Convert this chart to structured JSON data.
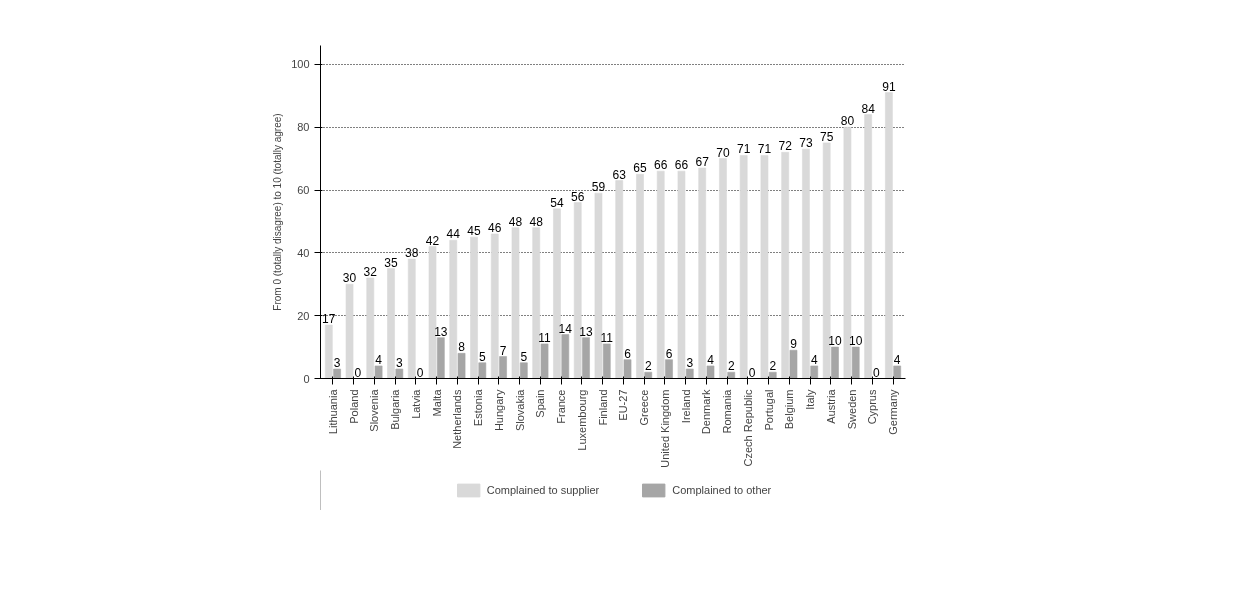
{
  "chart_data": {
    "type": "bar",
    "ylabel": "From 0 (totally disagree) to 10 (totally agree)",
    "categories": [
      "Lithuania",
      "Poland",
      "Slovenia",
      "Bulgaria",
      "Latvia",
      "Malta",
      "Netherlands",
      "Estonia",
      "Hungary",
      "Slovakia",
      "Spain",
      "France",
      "Luxembourg",
      "Finland",
      "EU-27",
      "Greece",
      "United Kingdom",
      "Ireland",
      "Denmark",
      "Romania",
      "Czech Republic",
      "Portugal",
      "Belgium",
      "Italy",
      "Austria",
      "Sweden",
      "Cyprus",
      "Germany"
    ],
    "series": [
      {
        "name": "Complained to supplier",
        "color": "#d9d9d9",
        "values": [
          17,
          30,
          32,
          35,
          38,
          42,
          44,
          45,
          46,
          48,
          48,
          54,
          56,
          59,
          63,
          65,
          66,
          66,
          67,
          70,
          71,
          71,
          72,
          73,
          75,
          80,
          84,
          91
        ]
      },
      {
        "name": "Complained to other",
        "color": "#a6a6a6",
        "values": [
          3,
          0,
          4,
          3,
          0,
          13,
          8,
          5,
          7,
          5,
          11,
          14,
          13,
          11,
          6,
          2,
          6,
          3,
          4,
          2,
          0,
          2,
          9,
          4,
          10,
          10,
          0,
          4
        ]
      }
    ],
    "ylim": [
      0,
      106
    ],
    "yticks": [
      0,
      20,
      40,
      60,
      80,
      100
    ],
    "grid": "y",
    "legend": "bottom",
    "data_labels": true
  }
}
